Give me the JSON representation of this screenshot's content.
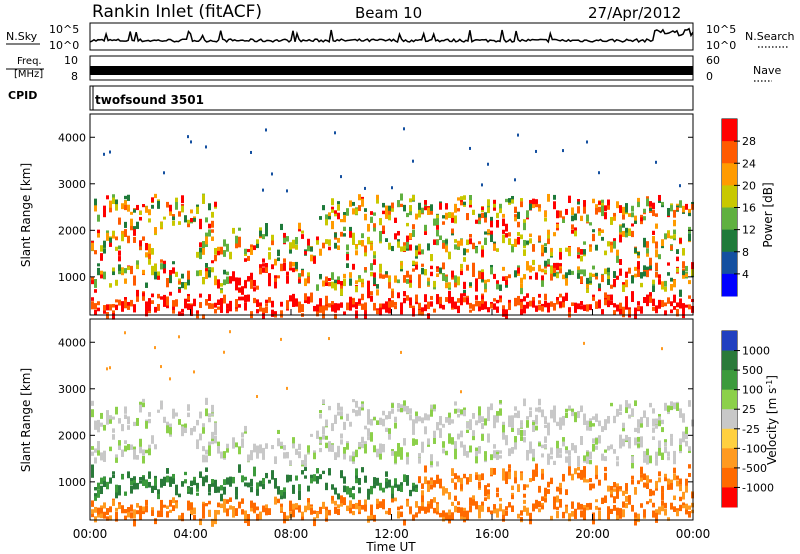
{
  "header": {
    "station": "Rankin Inlet (fitACF)",
    "beam": "Beam 10",
    "date": "27/Apr/2012"
  },
  "nsky": {
    "label": "N.Sky",
    "right_label": "N.Search",
    "tick_top": "10^5",
    "tick_bottom": "10^0"
  },
  "freq": {
    "label_line1": "Freq.",
    "label_line2": "[MHz]",
    "tick_left_top": "10",
    "tick_left_bottom": "8",
    "tick_right_top": "60",
    "tick_right_bottom": "0",
    "right_label": "Nave"
  },
  "cpid": {
    "label": "CPID",
    "mode": "twofsound 3501"
  },
  "chart_data": [
    {
      "type": "heatmap",
      "name": "power",
      "ylabel": "Slant Range [km]",
      "xlabel": "Time UT",
      "x_ticks": [
        "00:00",
        "04:00",
        "08:00",
        "12:00",
        "16:00",
        "20:00",
        "00:00"
      ],
      "x_range_hours": [
        0,
        24
      ],
      "y_ticks": [
        1000,
        2000,
        3000,
        4000
      ],
      "ylim": [
        180,
        4500
      ],
      "colorbar": {
        "label": "Power [dB]",
        "ticks": [
          "28",
          "24",
          "20",
          "16",
          "12",
          "8",
          "4"
        ],
        "colors": [
          "#ff0000",
          "#ff5a00",
          "#ff9b00",
          "#c8c800",
          "#60b040",
          "#1e7a3a",
          "#1450a0",
          "#0000ff"
        ]
      }
    },
    {
      "type": "heatmap",
      "name": "velocity",
      "ylabel": "Slant Range [km]",
      "xlabel": "Time UT",
      "x_ticks": [
        "00:00",
        "04:00",
        "08:00",
        "12:00",
        "16:00",
        "20:00",
        "00:00"
      ],
      "x_range_hours": [
        0,
        24
      ],
      "y_ticks": [
        1000,
        2000,
        3000,
        4000
      ],
      "ylim": [
        180,
        4500
      ],
      "colorbar": {
        "label": "Velocity [m s^-1]",
        "ticks": [
          "1000",
          "500",
          "100",
          "25",
          "-25",
          "-100",
          "-500",
          "-1000"
        ],
        "colors": [
          "#2040c0",
          "#2a7a3a",
          "#3c9a3c",
          "#8cd04a",
          "#c8c8c8",
          "#ffd040",
          "#ff9a20",
          "#ff6a00",
          "#ff0000"
        ]
      }
    }
  ]
}
